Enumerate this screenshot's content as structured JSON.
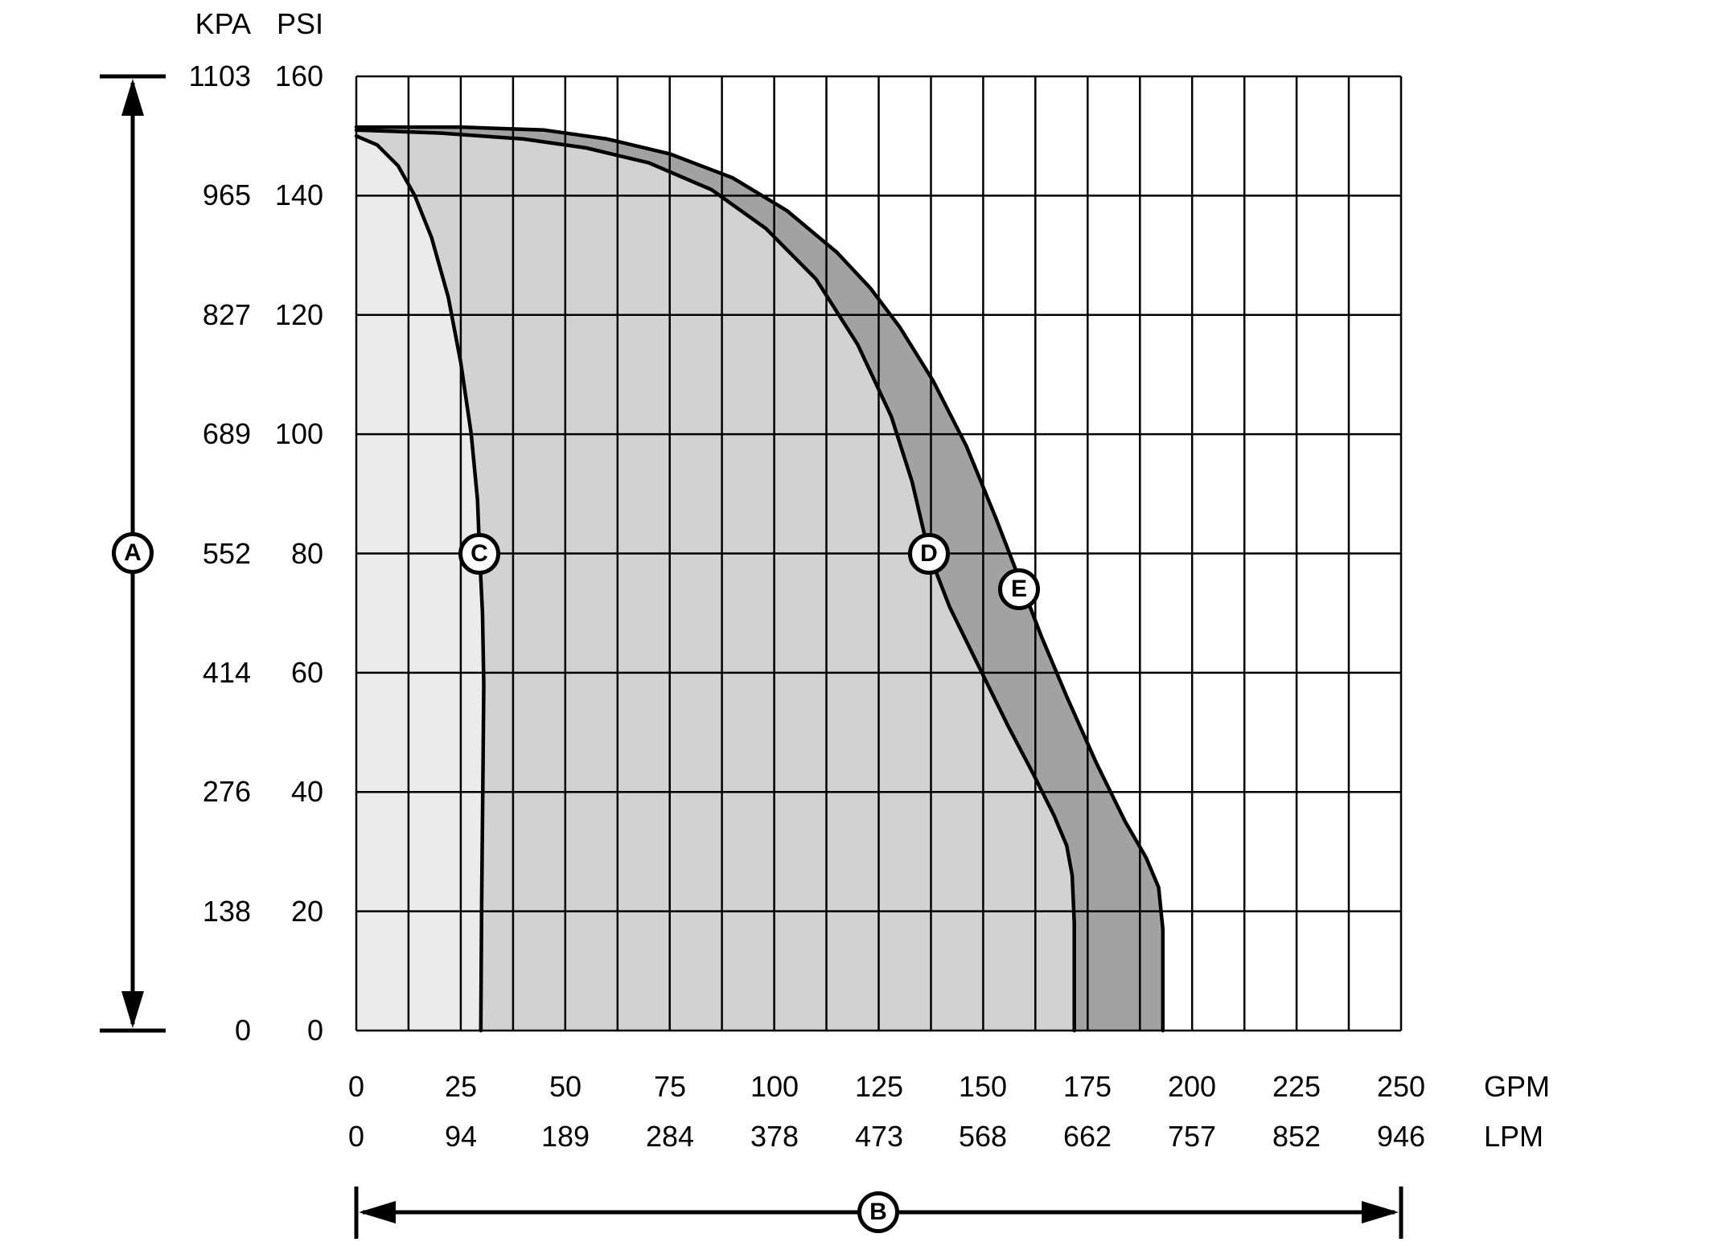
{
  "page": {
    "background": "#ffffff"
  },
  "annotations": {
    "pressure_axis_label": "A",
    "flow_axis_label": "B"
  },
  "chart_data": {
    "type": "area",
    "title": "",
    "description": "Pump performance envelope: discharge pressure (KPA / PSI) versus flow (GPM / LPM) with three performance curves C, D and E; vertical range arrow A, horizontal range arrow B.",
    "legend": "none",
    "grid": {
      "on": true,
      "x_step_gpm": 12.5,
      "y_step_psi": 20,
      "line_color": "#000000"
    },
    "y_axis": {
      "units": [
        "KPA",
        "PSI"
      ],
      "psi_range": [
        0,
        160
      ],
      "kpa_ticks": [
        1103,
        965,
        827,
        689,
        552,
        414,
        276,
        138,
        0
      ],
      "psi_ticks": [
        160,
        140,
        120,
        100,
        80,
        60,
        40,
        20,
        0
      ]
    },
    "x_axis": {
      "units": [
        "GPM",
        "LPM"
      ],
      "gpm_range": [
        0,
        250
      ],
      "gpm_ticks": [
        0,
        25,
        50,
        75,
        100,
        125,
        150,
        175,
        200,
        225,
        250
      ],
      "lpm_ticks": [
        0,
        94,
        189,
        284,
        378,
        473,
        568,
        662,
        757,
        852,
        946
      ]
    },
    "series": [
      {
        "name": "E",
        "fill": "#a2a2a2",
        "stroke": "#000000",
        "points": [
          [
            0,
            151.5
          ],
          [
            25,
            151.5
          ],
          [
            45,
            151
          ],
          [
            60,
            149.5
          ],
          [
            75,
            147
          ],
          [
            90,
            143
          ],
          [
            103,
            137.5
          ],
          [
            115,
            130.5
          ],
          [
            123,
            124.5
          ],
          [
            130,
            118
          ],
          [
            138,
            109
          ],
          [
            146,
            98
          ],
          [
            153,
            86
          ],
          [
            158.5,
            76
          ],
          [
            164,
            66
          ],
          [
            170,
            56
          ],
          [
            177,
            45
          ],
          [
            184,
            35
          ],
          [
            189,
            29
          ],
          [
            192,
            24
          ],
          [
            193,
            17
          ],
          [
            193,
            0
          ]
        ]
      },
      {
        "name": "D",
        "fill": "#d2d2d2",
        "stroke": "#000000",
        "points": [
          [
            0,
            151
          ],
          [
            20,
            150.5
          ],
          [
            40,
            149.5
          ],
          [
            55,
            148
          ],
          [
            70,
            145.5
          ],
          [
            85,
            141
          ],
          [
            98,
            134.5
          ],
          [
            110,
            126
          ],
          [
            120,
            115
          ],
          [
            128,
            103
          ],
          [
            133,
            92
          ],
          [
            137,
            80
          ],
          [
            142,
            71
          ],
          [
            149,
            61
          ],
          [
            156,
            51
          ],
          [
            162,
            43
          ],
          [
            167,
            36
          ],
          [
            170,
            31
          ],
          [
            171.3,
            26
          ],
          [
            171.8,
            18
          ],
          [
            171.8,
            0
          ]
        ]
      },
      {
        "name": "C",
        "fill": "#ebebeb",
        "stroke": "#000000",
        "points": [
          [
            0,
            150
          ],
          [
            5,
            148.5
          ],
          [
            10,
            145
          ],
          [
            14,
            140
          ],
          [
            18,
            133
          ],
          [
            22,
            123
          ],
          [
            25,
            112
          ],
          [
            27.5,
            100
          ],
          [
            29,
            89
          ],
          [
            29.5,
            80
          ],
          [
            30.2,
            70
          ],
          [
            30.5,
            58
          ],
          [
            30.3,
            42
          ],
          [
            30,
            22
          ],
          [
            29.8,
            0
          ]
        ]
      }
    ],
    "markers": [
      {
        "label": "C",
        "gpm": 29.5,
        "psi": 80
      },
      {
        "label": "D",
        "gpm": 137,
        "psi": 80
      },
      {
        "label": "E",
        "gpm": 158.5,
        "psi": 74
      }
    ]
  }
}
